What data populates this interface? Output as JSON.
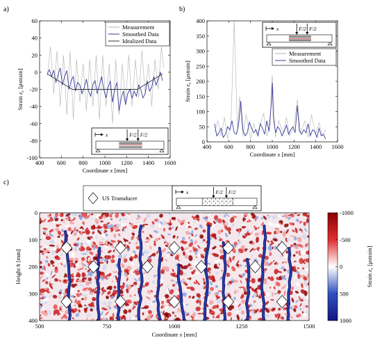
{
  "panels": {
    "a": "a)",
    "b": "b)",
    "c": "c)"
  },
  "chart_data": [
    {
      "type": "line",
      "panel": "a)",
      "xlabel": "Coordinate x [mm]",
      "ylabel": "Strain εc [μstrain]",
      "xlim": [
        400,
        1600
      ],
      "ylim": [
        -100,
        60
      ],
      "xticks": [
        400,
        600,
        800,
        1000,
        1200,
        1400,
        1600
      ],
      "yticks": [
        -100,
        -80,
        -60,
        -40,
        -20,
        0,
        20,
        40,
        60
      ],
      "legend_position": "top-right",
      "series": [
        {
          "name": "Measurement",
          "color": "#b0b0b0",
          "x": [
            470,
            500,
            530,
            560,
            590,
            620,
            650,
            680,
            710,
            740,
            770,
            800,
            830,
            860,
            890,
            920,
            950,
            980,
            1010,
            1040,
            1070,
            1100,
            1130,
            1160,
            1190,
            1220,
            1250,
            1280,
            1310,
            1340,
            1370,
            1400,
            1430,
            1460,
            1490,
            1520,
            1540
          ],
          "y": [
            -5,
            30,
            -25,
            25,
            -40,
            20,
            -50,
            25,
            -55,
            15,
            -35,
            10,
            -45,
            15,
            -40,
            20,
            -55,
            20,
            -40,
            10,
            -60,
            15,
            -50,
            10,
            -35,
            20,
            -40,
            15,
            -30,
            25,
            -25,
            10,
            -40,
            15,
            -20,
            30,
            5
          ]
        },
        {
          "name": "Smoothed Data",
          "color": "#3a3a9a",
          "x": [
            470,
            490,
            510,
            530,
            550,
            570,
            590,
            610,
            630,
            650,
            670,
            690,
            710,
            730,
            750,
            770,
            790,
            810,
            830,
            850,
            870,
            890,
            910,
            930,
            950,
            970,
            990,
            1010,
            1030,
            1050,
            1070,
            1090,
            1110,
            1130,
            1150,
            1170,
            1190,
            1210,
            1230,
            1250,
            1270,
            1290,
            1310,
            1330,
            1350,
            1370,
            1390,
            1410,
            1430,
            1450,
            1470,
            1490,
            1510,
            1530
          ],
          "y": [
            -2,
            3,
            -5,
            2,
            -12,
            -3,
            5,
            -15,
            -5,
            2,
            -20,
            -10,
            -5,
            -22,
            -12,
            -15,
            -25,
            -18,
            -8,
            -22,
            -28,
            -14,
            -10,
            -25,
            -15,
            -5,
            -20,
            -30,
            -18,
            -10,
            -35,
            -20,
            -12,
            -45,
            -30,
            -22,
            -38,
            -25,
            -20,
            -30,
            -22,
            -28,
            -15,
            -20,
            -30,
            -25,
            -10,
            -22,
            -18,
            -5,
            -15,
            -8,
            0,
            -10
          ]
        },
        {
          "name": "Idealized Data",
          "color": "#333333",
          "x": [
            470,
            700,
            1300,
            1530
          ],
          "y": [
            -2,
            -20,
            -20,
            -2
          ]
        }
      ]
    },
    {
      "type": "line",
      "panel": "b)",
      "xlabel": "Coordinate x [mm]",
      "ylabel": "Strain εc [μstrain]",
      "xlim": [
        400,
        1600
      ],
      "ylim": [
        0,
        400
      ],
      "xticks": [
        400,
        600,
        800,
        1000,
        1200,
        1400,
        1600
      ],
      "yticks": [
        0,
        50,
        100,
        150,
        200,
        250,
        300,
        350,
        400
      ],
      "legend_position": "top-right",
      "series": [
        {
          "name": "Measurement",
          "color": "#b0b0b0",
          "x": [
            470,
            500,
            530,
            560,
            590,
            620,
            650,
            680,
            700,
            730,
            760,
            800,
            830,
            860,
            900,
            920,
            950,
            980,
            1000,
            1030,
            1060,
            1100,
            1130,
            1160,
            1200,
            1230,
            1260,
            1300,
            1330,
            1360,
            1400,
            1430,
            1460,
            1490
          ],
          "y": [
            30,
            70,
            20,
            80,
            10,
            60,
            400,
            30,
            150,
            20,
            90,
            10,
            60,
            25,
            70,
            95,
            20,
            60,
            220,
            15,
            70,
            30,
            80,
            20,
            50,
            140,
            30,
            70,
            15,
            90,
            25,
            65,
            20,
            40
          ]
        },
        {
          "name": "Smoothed Data",
          "color": "#3a3a9a",
          "x": [
            470,
            490,
            510,
            530,
            550,
            570,
            590,
            610,
            630,
            650,
            670,
            690,
            710,
            730,
            750,
            770,
            790,
            810,
            830,
            850,
            870,
            890,
            910,
            930,
            950,
            970,
            990,
            1000,
            1010,
            1030,
            1050,
            1070,
            1090,
            1110,
            1130,
            1150,
            1170,
            1190,
            1210,
            1230,
            1250,
            1270,
            1290,
            1310,
            1330,
            1350,
            1370,
            1390,
            1410,
            1430,
            1450,
            1470,
            1490
          ],
          "y": [
            60,
            20,
            30,
            45,
            15,
            25,
            50,
            40,
            70,
            30,
            25,
            55,
            135,
            40,
            20,
            30,
            65,
            45,
            30,
            40,
            20,
            60,
            45,
            25,
            70,
            35,
            120,
            195,
            80,
            30,
            50,
            40,
            20,
            35,
            55,
            25,
            40,
            50,
            30,
            120,
            35,
            25,
            40,
            30,
            60,
            20,
            40,
            35,
            15,
            45,
            20,
            25,
            10
          ]
        }
      ]
    },
    {
      "type": "heatmap",
      "panel": "c)",
      "xlabel": "Coordinate x [mm]",
      "ylabel": "Height h [mm]",
      "xlim": [
        500,
        1500
      ],
      "ylim": [
        0,
        400
      ],
      "y_reversed": true,
      "xticks": [
        500,
        750,
        1000,
        1250,
        1500
      ],
      "yticks": [
        0,
        100,
        200,
        300,
        400
      ],
      "colorbar": {
        "label": "Strain εc [μstrain]",
        "ticks": [
          -1000,
          -500,
          0,
          500,
          1000
        ],
        "tick_labels": [
          "-1000",
          "-500",
          "0",
          "500",
          "1000"
        ],
        "colors": [
          "#8b0000",
          "#e03030",
          "#ffffff",
          "#3050c0",
          "#101480"
        ]
      },
      "legend": {
        "marker": "diamond",
        "label": "US Transducer"
      },
      "transducers_x": [
        600,
        700,
        800,
        900,
        1000,
        1100,
        1200,
        1300,
        1400
      ],
      "transducers": [
        {
          "x": 600,
          "y": 130
        },
        {
          "x": 800,
          "y": 130
        },
        {
          "x": 1000,
          "y": 130
        },
        {
          "x": 1200,
          "y": 130
        },
        {
          "x": 1400,
          "y": 130
        },
        {
          "x": 700,
          "y": 200
        },
        {
          "x": 900,
          "y": 200
        },
        {
          "x": 1100,
          "y": 200
        },
        {
          "x": 1300,
          "y": 200
        },
        {
          "x": 600,
          "y": 330
        },
        {
          "x": 800,
          "y": 330
        },
        {
          "x": 1000,
          "y": 330
        },
        {
          "x": 1200,
          "y": 330
        },
        {
          "x": 1400,
          "y": 330
        }
      ],
      "cracks_x": [
        610,
        715,
        790,
        870,
        950,
        1040,
        1110,
        1185,
        1265,
        1330,
        1425
      ]
    }
  ],
  "inset": {
    "x_label": "x",
    "load_left": "F/2",
    "load_right": "F/2"
  }
}
